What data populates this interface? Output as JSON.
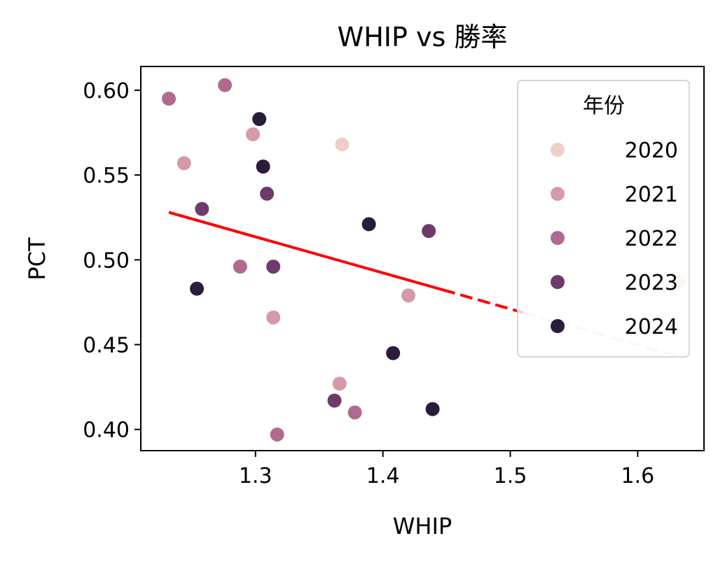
{
  "chart_data": {
    "type": "scatter",
    "title": "WHIP vs 勝率",
    "xlabel": "WHIP",
    "ylabel": "PCT",
    "xlim": [
      1.21,
      1.652
    ],
    "ylim": [
      0.3875,
      0.614
    ],
    "x_ticks": [
      1.3,
      1.4,
      1.5,
      1.6
    ],
    "y_ticks": [
      0.4,
      0.45,
      0.5,
      0.55,
      0.6
    ],
    "x_tick_labels": [
      "1.3",
      "1.4",
      "1.5",
      "1.6"
    ],
    "y_tick_labels": [
      "0.40",
      "0.45",
      "0.50",
      "0.55",
      "0.60"
    ],
    "grid": false,
    "legend": {
      "title": "年份",
      "placement": "top-right",
      "entries": [
        {
          "label": "2020",
          "color": "#ecd0c8"
        },
        {
          "label": "2021",
          "color": "#d49aa8"
        },
        {
          "label": "2022",
          "color": "#b06a90"
        },
        {
          "label": "2023",
          "color": "#6e3a6a"
        },
        {
          "label": "2024",
          "color": "#2a1c3a"
        }
      ]
    },
    "series": [
      {
        "name": "2020",
        "color": "#ecd0c8",
        "points": [
          [
            1.368,
            0.568
          ],
          [
            1.632,
            0.487
          ]
        ]
      },
      {
        "name": "2021",
        "color": "#d49aa8",
        "points": [
          [
            1.244,
            0.557
          ],
          [
            1.298,
            0.574
          ],
          [
            1.314,
            0.466
          ],
          [
            1.366,
            0.427
          ],
          [
            1.42,
            0.479
          ]
        ]
      },
      {
        "name": "2022",
        "color": "#b06a90",
        "points": [
          [
            1.232,
            0.595
          ],
          [
            1.276,
            0.603
          ],
          [
            1.288,
            0.496
          ],
          [
            1.317,
            0.397
          ],
          [
            1.378,
            0.41
          ]
        ]
      },
      {
        "name": "2023",
        "color": "#6e3a6a",
        "points": [
          [
            1.258,
            0.53
          ],
          [
            1.309,
            0.539
          ],
          [
            1.314,
            0.496
          ],
          [
            1.362,
            0.417
          ],
          [
            1.436,
            0.517
          ]
        ]
      },
      {
        "name": "2024",
        "color": "#2a1c3a",
        "points": [
          [
            1.254,
            0.483
          ],
          [
            1.303,
            0.583
          ],
          [
            1.306,
            0.555
          ],
          [
            1.389,
            0.521
          ],
          [
            1.408,
            0.445
          ],
          [
            1.439,
            0.412
          ]
        ]
      }
    ],
    "trendline": {
      "color": "#ff0000",
      "faded_color": "#ffcccc",
      "segments": [
        {
          "style": "solid",
          "x": [
            1.232,
            1.447
          ]
        },
        {
          "style": "dashed",
          "x": [
            1.447,
            1.51
          ]
        },
        {
          "style": "dashed-faded",
          "x": [
            1.51,
            1.632
          ]
        }
      ],
      "x": [
        1.232,
        1.632
      ],
      "y": [
        0.528,
        0.443
      ]
    }
  }
}
